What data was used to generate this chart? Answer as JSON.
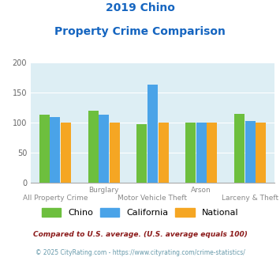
{
  "title_line1": "2019 Chino",
  "title_line2": "Property Crime Comparison",
  "title_color": "#1565c0",
  "categories": [
    "All Property Crime",
    "Burglary",
    "Motor Vehicle Theft",
    "Arson",
    "Larceny & Theft"
  ],
  "cat_labels_top": [
    "",
    "Burglary",
    "",
    "Arson",
    ""
  ],
  "cat_labels_bottom": [
    "All Property Crime",
    "",
    "Motor Vehicle Theft",
    "",
    "Larceny & Theft"
  ],
  "chino_values": [
    113,
    120,
    98,
    100,
    115
  ],
  "california_values": [
    110,
    113,
    163,
    100,
    103
  ],
  "national_values": [
    100,
    100,
    100,
    100,
    100
  ],
  "chino_color": "#6dbf3e",
  "california_color": "#4aa3e8",
  "national_color": "#f5a623",
  "ylim": [
    0,
    200
  ],
  "yticks": [
    0,
    50,
    100,
    150,
    200
  ],
  "plot_bg_color": "#ddeef4",
  "legend_labels": [
    "Chino",
    "California",
    "National"
  ],
  "footnote1": "Compared to U.S. average. (U.S. average equals 100)",
  "footnote2": "© 2025 CityRating.com - https://www.cityrating.com/crime-statistics/",
  "footnote1_color": "#8b1a1a",
  "footnote2_color": "#6699aa"
}
